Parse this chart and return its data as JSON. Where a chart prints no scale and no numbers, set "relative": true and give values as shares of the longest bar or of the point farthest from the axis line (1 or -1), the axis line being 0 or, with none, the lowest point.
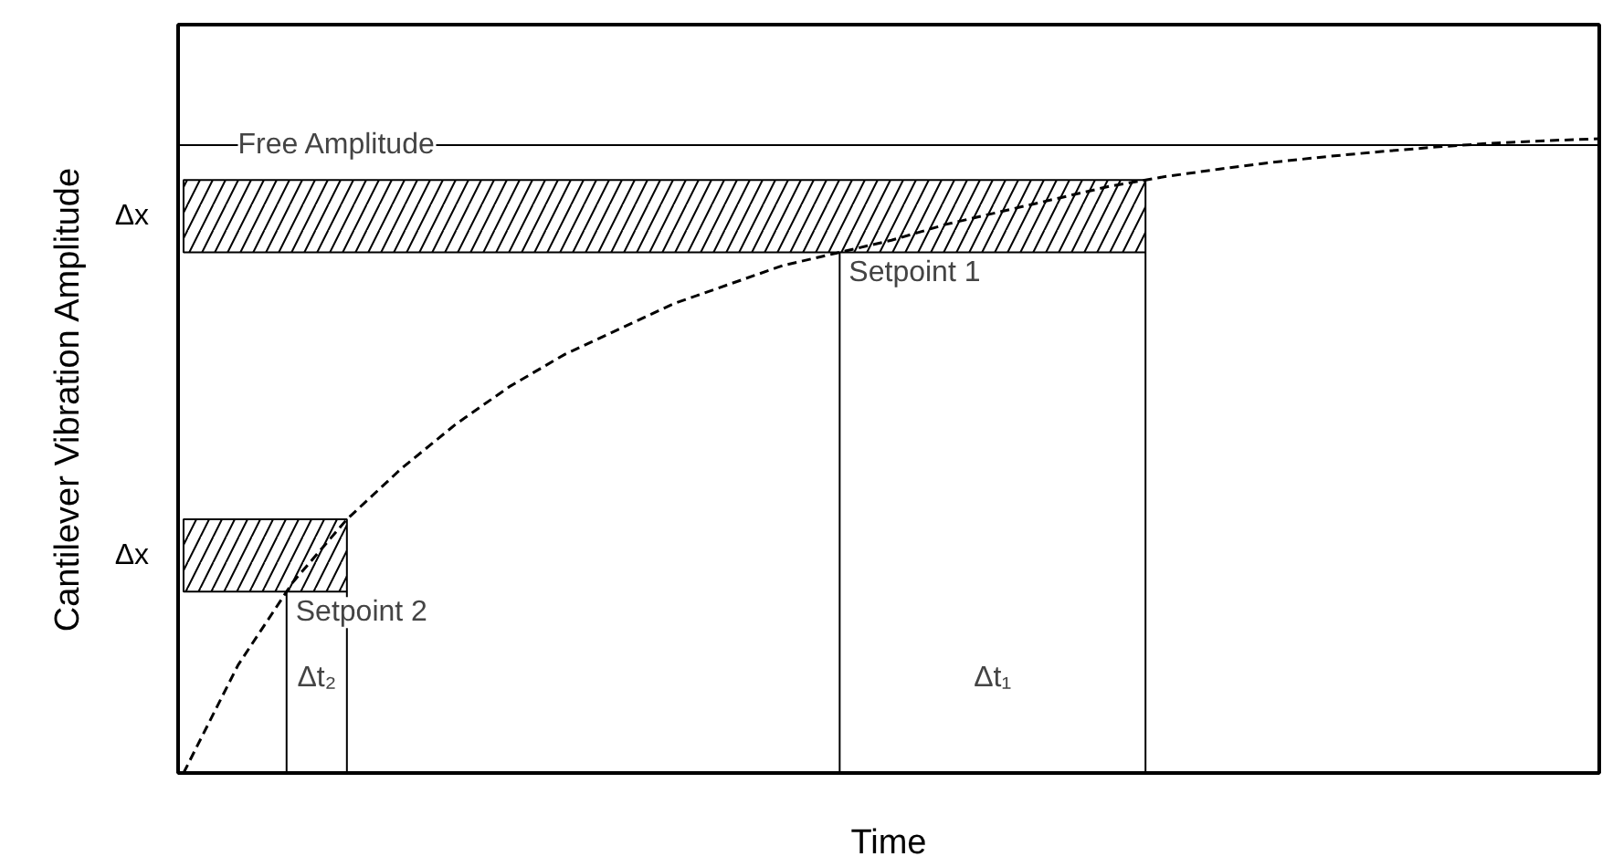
{
  "chart_data": {
    "type": "line",
    "relative": true,
    "xlabel": "Time",
    "ylabel": "Cantilever Vibration Amplitude",
    "categories": [
      null,
      null,
      null,
      null,
      null,
      null,
      null,
      null,
      null,
      null,
      null,
      null,
      null,
      null,
      null,
      null,
      null,
      null,
      null,
      null,
      null,
      null,
      null,
      null,
      null,
      null,
      null
    ],
    "series": [
      {
        "color": "#000000",
        "values": [
          0,
          0.17,
          0.3,
          0.4,
          0.48,
          0.55,
          0.61,
          0.66,
          0.7,
          0.74,
          0.77,
          0.8,
          0.82,
          0.84,
          0.865,
          0.885,
          0.905,
          0.925,
          0.94,
          0.952,
          0.963,
          0.972,
          0.98,
          0.987,
          0.993,
          0.997,
          1.0
        ]
      }
    ],
    "line_style": "dashed",
    "marker": "none",
    "tick_labels": false,
    "ref_lines": [
      {
        "axis": "y",
        "value": 0.99,
        "label": "Free Amplitude",
        "color": "#000000"
      }
    ],
    "bands": [
      {
        "axis": "y",
        "from": 0.821,
        "to": 0.935,
        "label": "Δx",
        "color": "#000000"
      },
      {
        "axis": "y",
        "from": 0.286,
        "to": 0.4,
        "label": "Δx",
        "color": "#000000"
      }
    ],
    "annotations": [
      "Setpoint 1",
      "Δt₁",
      "Setpoint 2",
      "Δt₂"
    ]
  }
}
